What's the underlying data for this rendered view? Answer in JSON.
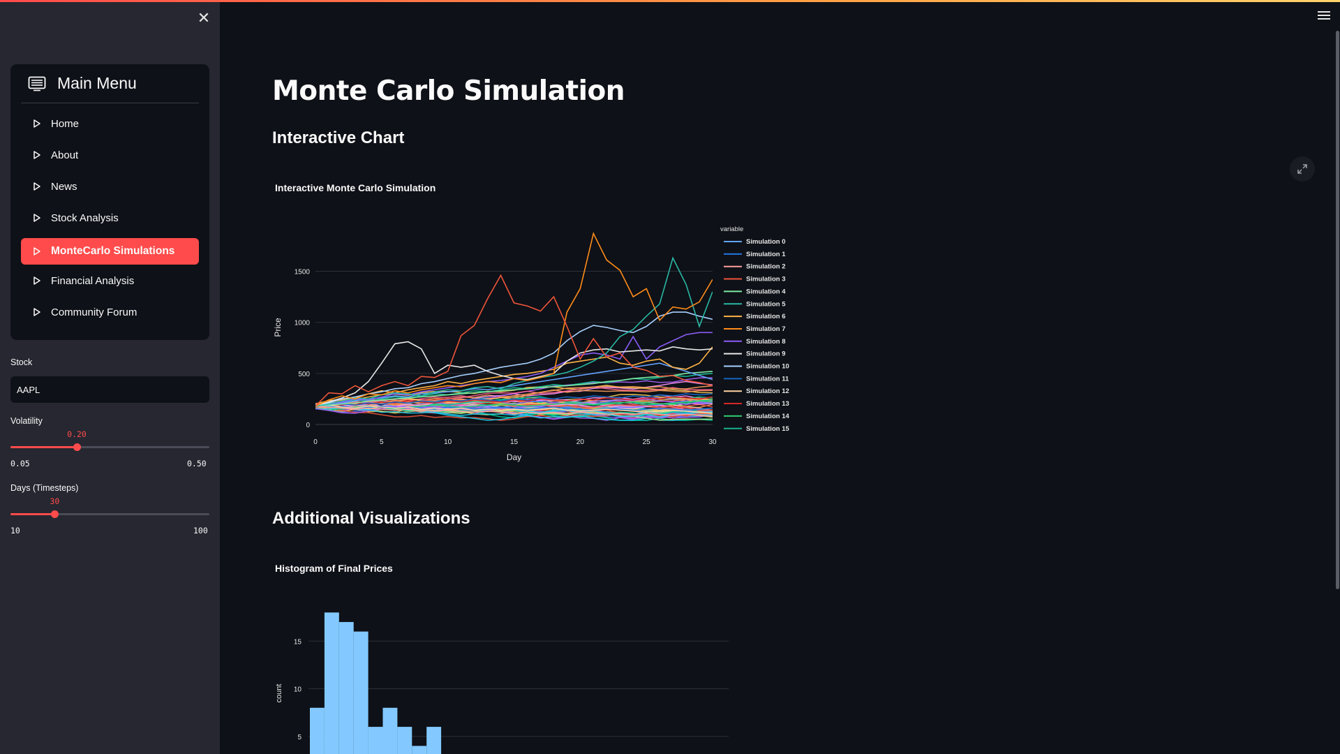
{
  "sidebar": {
    "menu_title": "Main Menu",
    "items": [
      {
        "label": "Home",
        "active": false
      },
      {
        "label": "About",
        "active": false
      },
      {
        "label": "News",
        "active": false
      },
      {
        "label": "Stock Analysis",
        "active": false
      },
      {
        "label": "MonteCarlo Simulations",
        "active": true
      },
      {
        "label": "Financial Analysis",
        "active": false
      },
      {
        "label": "Community Forum",
        "active": false
      }
    ],
    "stock": {
      "label": "Stock",
      "value": "AAPL"
    },
    "volatility": {
      "label": "Volatility",
      "value": 0.2,
      "value_text": "0.20",
      "min": 0.05,
      "min_text": "0.05",
      "max": 0.5,
      "max_text": "0.50"
    },
    "days": {
      "label": "Days (Timesteps)",
      "value": 30,
      "value_text": "30",
      "min": 10,
      "min_text": "10",
      "max": 100,
      "max_text": "100"
    }
  },
  "main": {
    "title": "Monte Carlo Simulation",
    "interactive_header": "Interactive Chart",
    "additional_header": "Additional Visualizations"
  },
  "colors": {
    "accent": "#ff4b4b",
    "background": "#0e1117",
    "sidebar": "#262730",
    "histogram": "#83c9ff"
  },
  "chart_data": [
    {
      "type": "line",
      "title": "Interactive Monte Carlo Simulation",
      "xlabel": "Day",
      "ylabel": "Price",
      "xlim": [
        0,
        30
      ],
      "ylim": [
        0,
        1900
      ],
      "xticks": [
        0,
        5,
        10,
        15,
        20,
        25,
        30
      ],
      "yticks": [
        0,
        500,
        1000,
        1500
      ],
      "legend_title": "variable",
      "legend_position": "right",
      "legend": [
        "Simulation 0",
        "Simulation 1",
        "Simulation 2",
        "Simulation 3",
        "Simulation 4",
        "Simulation 5",
        "Simulation 6",
        "Simulation 7",
        "Simulation 8",
        "Simulation 9",
        "Simulation 10",
        "Simulation 11",
        "Simulation 12",
        "Simulation 13",
        "Simulation 14",
        "Simulation 15"
      ],
      "grid": true,
      "series": [
        {
          "name": "Simulation 3",
          "color": "#ef553b",
          "values": [
            180,
            310,
            300,
            380,
            320,
            380,
            420,
            380,
            470,
            460,
            520,
            870,
            970,
            1230,
            1460,
            1190,
            1160,
            1110,
            1250,
            960,
            640,
            840,
            660,
            700,
            560,
            530,
            470,
            480,
            430,
            410,
            380
          ]
        },
        {
          "name": "Simulation 7",
          "color": "#ff8c1a",
          "values": [
            180,
            240,
            280,
            250,
            300,
            290,
            330,
            310,
            340,
            360,
            380,
            370,
            400,
            420,
            410,
            450,
            430,
            460,
            500,
            1100,
            1330,
            1870,
            1610,
            1510,
            1250,
            1330,
            1020,
            1150,
            1130,
            1200,
            1420
          ]
        },
        {
          "name": "Simulation 5",
          "color": "#2ab8a5",
          "values": [
            180,
            200,
            230,
            260,
            250,
            290,
            310,
            300,
            280,
            320,
            340,
            330,
            360,
            370,
            350,
            400,
            430,
            460,
            480,
            510,
            560,
            620,
            700,
            860,
            930,
            1060,
            1180,
            1630,
            1370,
            960,
            1300
          ]
        },
        {
          "name": "Simulation 9",
          "color": "#e8e8e8",
          "values": [
            180,
            220,
            260,
            310,
            420,
            600,
            790,
            810,
            740,
            500,
            580,
            560,
            580,
            520,
            480,
            450,
            440,
            470,
            500,
            620,
            700,
            730,
            740,
            710,
            720,
            730,
            720,
            760,
            740,
            730,
            740
          ]
        },
        {
          "name": "Simulation 10",
          "color": "#a8d1ff",
          "values": [
            180,
            210,
            250,
            270,
            300,
            320,
            350,
            360,
            400,
            420,
            450,
            480,
            500,
            530,
            560,
            580,
            600,
            640,
            700,
            820,
            910,
            970,
            950,
            920,
            900,
            960,
            1060,
            1100,
            1100,
            1060,
            1030
          ]
        },
        {
          "name": "Simulation 8",
          "color": "#8b5cf6",
          "values": [
            180,
            200,
            220,
            250,
            240,
            270,
            300,
            290,
            320,
            340,
            360,
            380,
            400,
            420,
            430,
            450,
            470,
            500,
            560,
            620,
            680,
            700,
            680,
            640,
            860,
            640,
            760,
            820,
            880,
            900,
            900
          ]
        },
        {
          "name": "Simulation 6",
          "color": "#ffb347",
          "values": [
            180,
            220,
            240,
            260,
            300,
            330,
            310,
            340,
            360,
            380,
            420,
            400,
            430,
            450,
            470,
            490,
            500,
            520,
            540,
            600,
            620,
            640,
            660,
            600,
            580,
            620,
            640,
            560,
            540,
            600,
            760
          ]
        },
        {
          "name": "Simulation 0",
          "color": "#63a4ff",
          "values": [
            180,
            200,
            210,
            230,
            250,
            260,
            280,
            270,
            300,
            310,
            320,
            330,
            350,
            340,
            360,
            380,
            400,
            420,
            440,
            460,
            480,
            500,
            520,
            540,
            560,
            580,
            600,
            560,
            520,
            480,
            440
          ]
        },
        {
          "name": "Simulation 4",
          "color": "#7ee8a4",
          "values": [
            180,
            190,
            200,
            210,
            230,
            240,
            250,
            260,
            270,
            280,
            290,
            300,
            310,
            320,
            330,
            340,
            350,
            360,
            370,
            380,
            390,
            400,
            420,
            430,
            450,
            460,
            470,
            480,
            500,
            510,
            520
          ]
        },
        {
          "name": "Simulation 2",
          "color": "#ff9f9f",
          "values": [
            180,
            170,
            160,
            150,
            160,
            150,
            140,
            150,
            140,
            130,
            140,
            130,
            120,
            130,
            120,
            110,
            120,
            110,
            120,
            110,
            120,
            110,
            100,
            110,
            100,
            110,
            100,
            90,
            100,
            90,
            80
          ]
        },
        {
          "name": "Simulation 12",
          "color": "#ffd3a3",
          "values": [
            180,
            190,
            170,
            160,
            180,
            170,
            160,
            170,
            150,
            160,
            150,
            160,
            140,
            150,
            140,
            150,
            140,
            150,
            160,
            140,
            130,
            140,
            150,
            140,
            130,
            120,
            130,
            140,
            130,
            120,
            110
          ]
        },
        {
          "name": "Simulation 1",
          "color": "#1f77e4",
          "values": [
            180,
            170,
            180,
            160,
            170,
            180,
            160,
            170,
            160,
            150,
            170,
            160,
            150,
            160,
            170,
            160,
            150,
            160,
            170,
            160,
            150,
            140,
            160,
            150,
            140,
            150,
            160,
            150,
            140,
            150,
            160
          ]
        },
        {
          "name": "Simulation 11",
          "color": "#1565c0",
          "values": [
            180,
            190,
            200,
            190,
            210,
            200,
            220,
            210,
            230,
            220,
            240,
            230,
            250,
            240,
            230,
            250,
            240,
            260,
            250,
            270,
            260,
            280,
            270,
            260,
            280,
            270,
            290,
            280,
            300,
            290,
            300
          ]
        },
        {
          "name": "Simulation 13",
          "color": "#d62728",
          "values": [
            180,
            200,
            190,
            210,
            200,
            220,
            210,
            230,
            220,
            210,
            230,
            220,
            240,
            230,
            220,
            240,
            230,
            250,
            240,
            230,
            250,
            240,
            260,
            250,
            240,
            260,
            250,
            270,
            260,
            250,
            270
          ]
        },
        {
          "name": "Simulation 14",
          "color": "#2ecc71",
          "values": [
            180,
            170,
            160,
            170,
            180,
            170,
            160,
            170,
            180,
            190,
            180,
            170,
            180,
            190,
            200,
            190,
            180,
            190,
            200,
            210,
            200,
            190,
            200,
            210,
            220,
            210,
            200,
            210,
            220,
            230,
            220
          ]
        },
        {
          "name": "Simulation 15",
          "color": "#19b38f",
          "values": [
            180,
            200,
            220,
            240,
            230,
            250,
            270,
            260,
            280,
            300,
            290,
            310,
            330,
            320,
            340,
            360,
            350,
            370,
            390,
            380,
            400,
            420,
            410,
            430,
            450,
            440,
            460,
            480,
            470,
            490,
            500
          ]
        }
      ]
    },
    {
      "type": "bar",
      "title": "Histogram of Final Prices",
      "xlabel": "",
      "ylabel": "count",
      "yticks": [
        5,
        10,
        15
      ],
      "ylim": [
        0,
        20
      ],
      "grid": true,
      "color": "#83c9ff",
      "values": [
        8,
        18,
        17,
        16,
        6,
        8,
        6,
        4,
        6
      ]
    }
  ]
}
